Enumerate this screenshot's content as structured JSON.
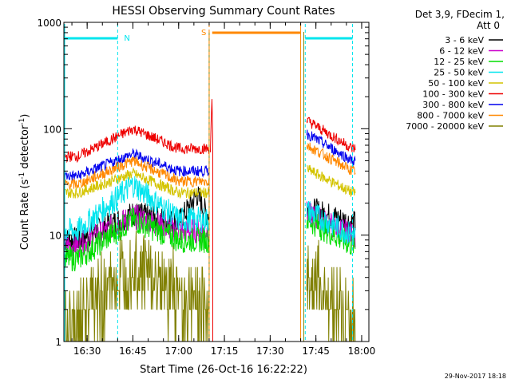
{
  "chart_data": {
    "type": "line",
    "title": "HESSI Observing Summary Count Rates",
    "xlabel": "Start Time (26-Oct-16 16:22:22)",
    "ylabel_main": "Count Rate (s",
    "ylabel_sup1": "-1",
    "ylabel_mid": " detector",
    "ylabel_sup2": "-1",
    "ylabel_end": ")",
    "y_scale": "log",
    "ylim": [
      1,
      1000
    ],
    "x_range": [
      "16:22:22",
      "18:02:22"
    ],
    "x_ticks": [
      "16:30",
      "16:45",
      "17:00",
      "17:15",
      "17:30",
      "17:45",
      "18:00"
    ],
    "y_ticks": [
      {
        "value": 1,
        "label": "1"
      },
      {
        "value": 10,
        "label": "10"
      },
      {
        "value": 100,
        "label": "100"
      },
      {
        "value": 1000,
        "label": "1000"
      }
    ],
    "legend_header": [
      "Det 3,9, FDecim 1,",
      "Att 0"
    ],
    "series": [
      {
        "name": "3 - 6 keV",
        "color": "#000000",
        "values": [
          [
            16.45,
            9
          ],
          [
            16.75,
            16
          ],
          [
            17.0,
            13
          ],
          [
            17.1,
            24
          ],
          [
            17.15,
            16
          ]
        ],
        "values_after": [
          [
            17.7,
            18
          ],
          [
            17.95,
            13
          ]
        ]
      },
      {
        "name": "6 - 12 keV",
        "color": "#cc00cc",
        "values": [
          [
            16.45,
            8
          ],
          [
            16.75,
            15
          ],
          [
            17.0,
            11
          ],
          [
            17.15,
            11
          ]
        ],
        "values_after": [
          [
            17.7,
            16
          ],
          [
            17.95,
            10
          ]
        ]
      },
      {
        "name": "12 - 25 keV",
        "color": "#00dd00",
        "values": [
          [
            16.45,
            6
          ],
          [
            16.75,
            14
          ],
          [
            17.0,
            9
          ],
          [
            17.15,
            9
          ]
        ],
        "values_after": [
          [
            17.7,
            14
          ],
          [
            17.95,
            8
          ]
        ]
      },
      {
        "name": "25 - 50 keV",
        "color": "#00e5ee",
        "values": [
          [
            16.45,
            11
          ],
          [
            16.75,
            30
          ],
          [
            17.0,
            14
          ],
          [
            17.15,
            14
          ]
        ],
        "values_after": [
          [
            17.7,
            17
          ],
          [
            17.95,
            10
          ]
        ]
      },
      {
        "name": "50 - 100 keV",
        "color": "#d4c400",
        "values": [
          [
            16.45,
            25
          ],
          [
            16.75,
            38
          ],
          [
            17.0,
            25
          ],
          [
            17.15,
            25
          ]
        ],
        "values_after": [
          [
            17.7,
            42
          ],
          [
            17.95,
            25
          ]
        ]
      },
      {
        "name": "100 - 300 keV",
        "color": "#ee0000",
        "values": [
          [
            16.45,
            55
          ],
          [
            16.75,
            100
          ],
          [
            17.0,
            65
          ],
          [
            17.15,
            65
          ]
        ],
        "values_after": [
          [
            17.7,
            120
          ],
          [
            17.95,
            65
          ]
        ]
      },
      {
        "name": "300 - 800 keV",
        "color": "#0000ee",
        "values": [
          [
            16.45,
            36
          ],
          [
            16.75,
            58
          ],
          [
            17.0,
            40
          ],
          [
            17.15,
            40
          ]
        ],
        "values_after": [
          [
            17.7,
            90
          ],
          [
            17.95,
            50
          ]
        ]
      },
      {
        "name": "800 - 7000 keV",
        "color": "#ff8800",
        "values": [
          [
            16.45,
            30
          ],
          [
            16.75,
            50
          ],
          [
            17.0,
            32
          ],
          [
            17.15,
            32
          ]
        ],
        "values_after": [
          [
            17.7,
            70
          ],
          [
            17.95,
            40
          ]
        ]
      },
      {
        "name": "7000 - 20000 keV",
        "color": "#808000",
        "values": [
          [
            16.45,
            1.5
          ],
          [
            16.75,
            5
          ],
          [
            17.0,
            2.5
          ],
          [
            17.15,
            2
          ]
        ],
        "values_after": [
          [
            17.7,
            4
          ],
          [
            17.95,
            1.5
          ]
        ]
      }
    ],
    "annotations": [
      {
        "label": "N",
        "color": "#00e5ee",
        "time": "16:40"
      },
      {
        "label": "S",
        "color": "#ff8800",
        "time": "17:10"
      }
    ],
    "footer_timestamp": "29-Nov-2017 18:18"
  }
}
